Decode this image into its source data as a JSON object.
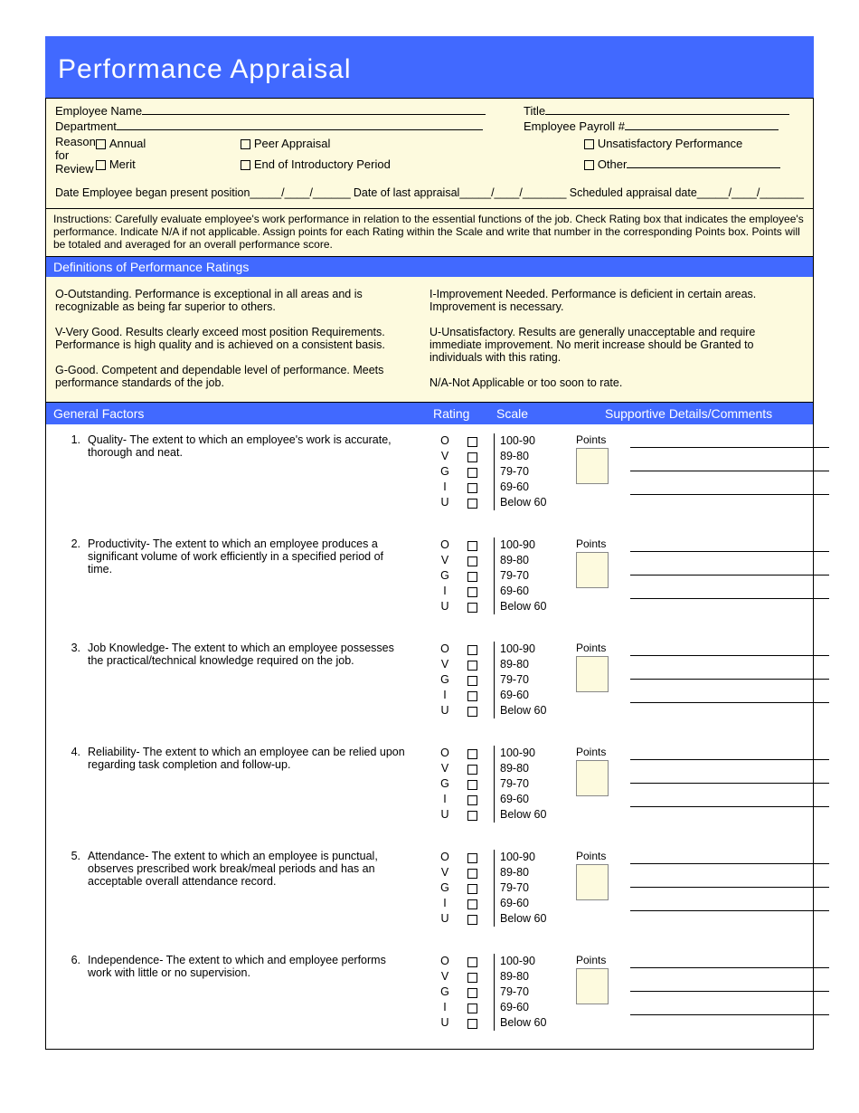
{
  "title": "Performance Appraisal",
  "info": {
    "emp_name_label": "Employee Name",
    "title_label": "Title",
    "dept_label": "Department",
    "payroll_label": "Employee Payroll #",
    "reason_label": "Reason for Review",
    "reasons": {
      "annual": "Annual",
      "merit": "Merit",
      "peer": "Peer Appraisal",
      "end_intro": "End of Introductory Period",
      "unsat": "Unsatisfactory Performance",
      "other": "Other"
    },
    "date_began": "Date Employee began present position_____/____/______",
    "date_last": "Date of last appraisal_____/____/_______",
    "date_sched": "Scheduled appraisal date_____/____/_______"
  },
  "instructions": "Instructions:   Carefully evaluate employee's work performance in relation to the essential functions of the job.  Check Rating box that indicates the employee's performance.  Indicate N/A if not applicable.  Assign points for each Rating within the Scale and write that number in the corresponding Points box.  Points will be totaled      and averaged for an overall performance score.",
  "defs_header": "Definitions of Performance Ratings",
  "defs_left": [
    "O-Outstanding.  Performance is exceptional in all areas and is recognizable as being far superior to others.",
    "V-Very Good.   Results clearly exceed most position Requirements.  Performance is high quality and is achieved on a consistent basis.",
    "G-Good.   Competent and dependable level of performance.  Meets performance standards of the job."
  ],
  "defs_right": [
    "I-Improvement Needed.   Performance is deficient in certain areas.  Improvement is necessary.",
    "U-Unsatisfactory.  Results are generally unacceptable and require immediate improvement.  No merit increase should be Granted to individuals with this rating.",
    "N/A-Not Applicable or too soon to rate."
  ],
  "table_headers": {
    "factors": "General Factors",
    "rating": "Rating",
    "scale": "Scale",
    "comments": "Supportive Details/Comments"
  },
  "rating_letters": [
    "O",
    "V",
    "G",
    "I",
    "U"
  ],
  "scale_labels": [
    "100-90",
    "89-80",
    "79-70",
    "69-60",
    "Below 60"
  ],
  "points_label": "Points",
  "factors": [
    {
      "num": "1.",
      "title": "Quality",
      "desc": "- The extent to which an employee's work is accurate, thorough and neat."
    },
    {
      "num": "2.",
      "title": "Productivity",
      "desc": "- The extent to which an employee produces a significant volume of work efficiently in a specified period of time."
    },
    {
      "num": "3.",
      "title": "Job Knowledge",
      "desc": "- The extent to which an employee possesses the practical/technical knowledge required on the job."
    },
    {
      "num": "4.",
      "title": "Reliability",
      "desc": "-  The extent to which an employee can be relied upon regarding task completion and follow-up."
    },
    {
      "num": "5.",
      "title": "Attendance",
      "desc": "- The extent to which an employee is punctual, observes prescribed work break/meal periods and has an acceptable overall attendance record."
    },
    {
      "num": "6.",
      "title": "Independence",
      "desc": "- The extent to which and employee performs work with little or no supervision."
    }
  ]
}
